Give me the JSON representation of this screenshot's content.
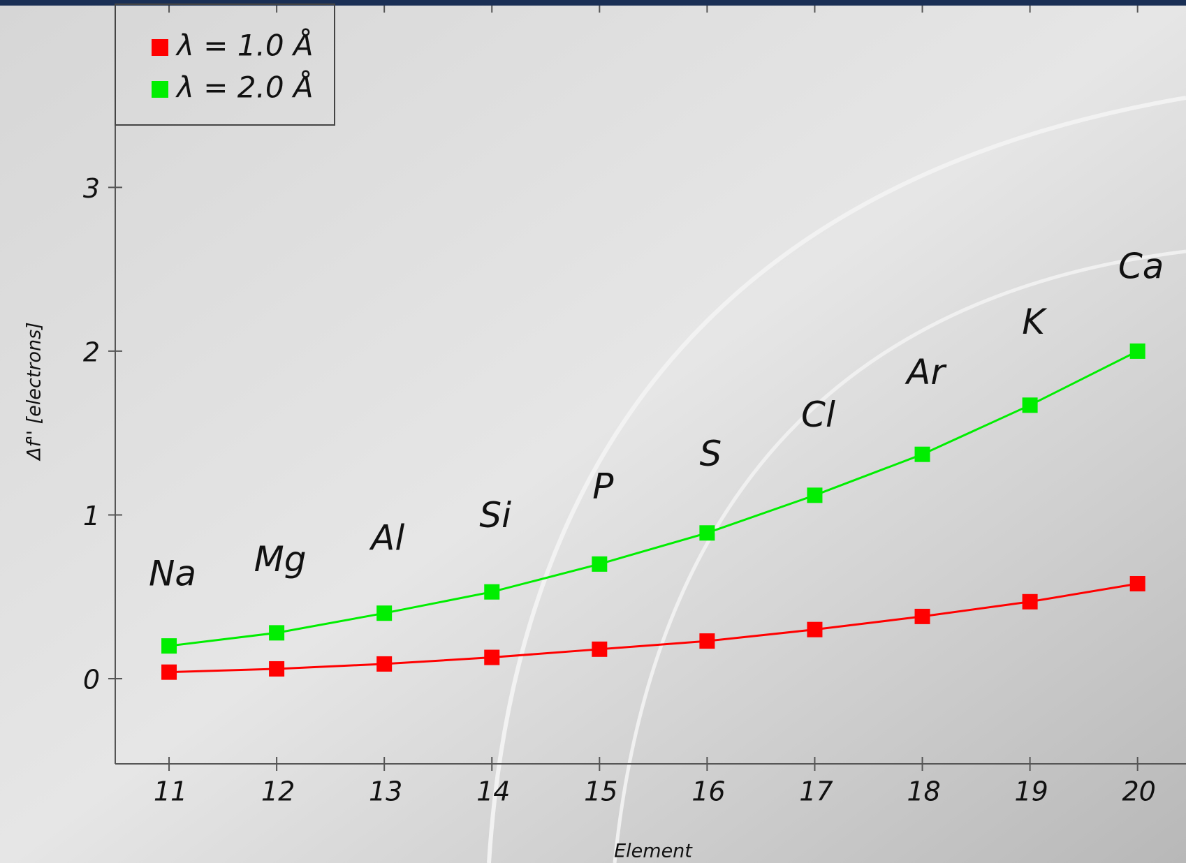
{
  "chart_data": {
    "type": "line",
    "x_label": "Element",
    "y_label": "Δf'' [electrons]",
    "x": [
      11,
      12,
      13,
      14,
      15,
      16,
      17,
      18,
      19,
      20
    ],
    "point_labels": [
      "Na",
      "Mg",
      "Al",
      "Si",
      "P",
      "S",
      "Cl",
      "Ar",
      "K",
      "Ca"
    ],
    "series": [
      {
        "name": "λ = 1.0 Å",
        "color": "#ff0000",
        "values": [
          0.04,
          0.06,
          0.09,
          0.13,
          0.18,
          0.23,
          0.3,
          0.38,
          0.47,
          0.58
        ]
      },
      {
        "name": "λ = 2.0 Å",
        "color": "#00ee00",
        "values": [
          0.2,
          0.28,
          0.4,
          0.53,
          0.7,
          0.89,
          1.12,
          1.37,
          1.67,
          2.0
        ]
      }
    ],
    "xlim": [
      10.5,
      20.45
    ],
    "ylim": [
      -0.52,
      4.11
    ],
    "xticks": [
      11,
      12,
      13,
      14,
      15,
      16,
      17,
      18,
      19,
      20
    ],
    "yticks": [
      0,
      1,
      2,
      3
    ],
    "legend": "upper left"
  }
}
